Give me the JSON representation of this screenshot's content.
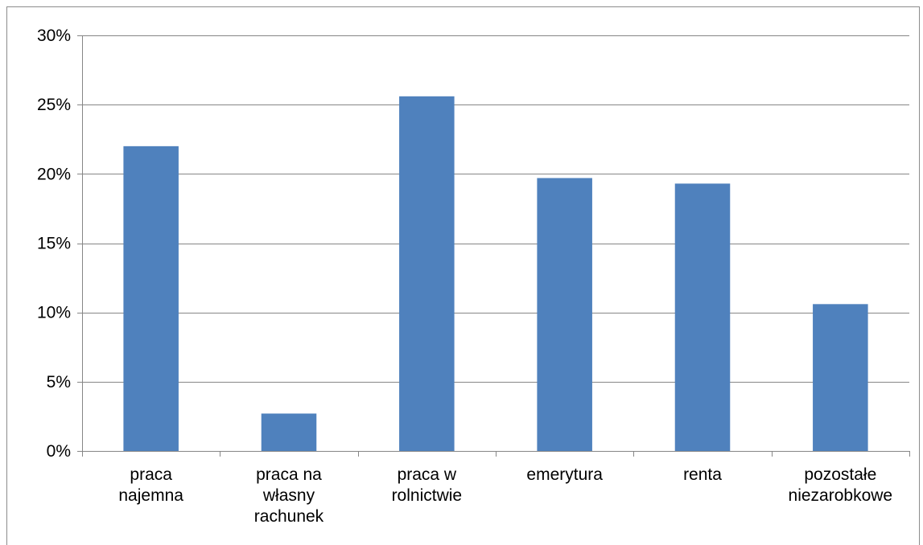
{
  "chart_data": {
    "type": "bar",
    "categories": [
      [
        "praca",
        "najemna"
      ],
      [
        "praca na",
        "własny",
        "rachunek"
      ],
      [
        "praca w",
        "rolnictwie"
      ],
      [
        "emerytura"
      ],
      [
        "renta"
      ],
      [
        "pozostałe",
        "niezarobkowe"
      ]
    ],
    "values": [
      22.0,
      2.7,
      25.6,
      19.7,
      19.3,
      10.6
    ],
    "ylim": [
      0,
      30
    ],
    "yticks": [
      0,
      5,
      10,
      15,
      20,
      25,
      30
    ],
    "ytick_labels": [
      "0%",
      "5%",
      "10%",
      "15%",
      "20%",
      "25%",
      "30%"
    ],
    "grid": true,
    "bar_color": "#4f81bd",
    "grid_color": "#868686",
    "axis_color": "#868686"
  }
}
